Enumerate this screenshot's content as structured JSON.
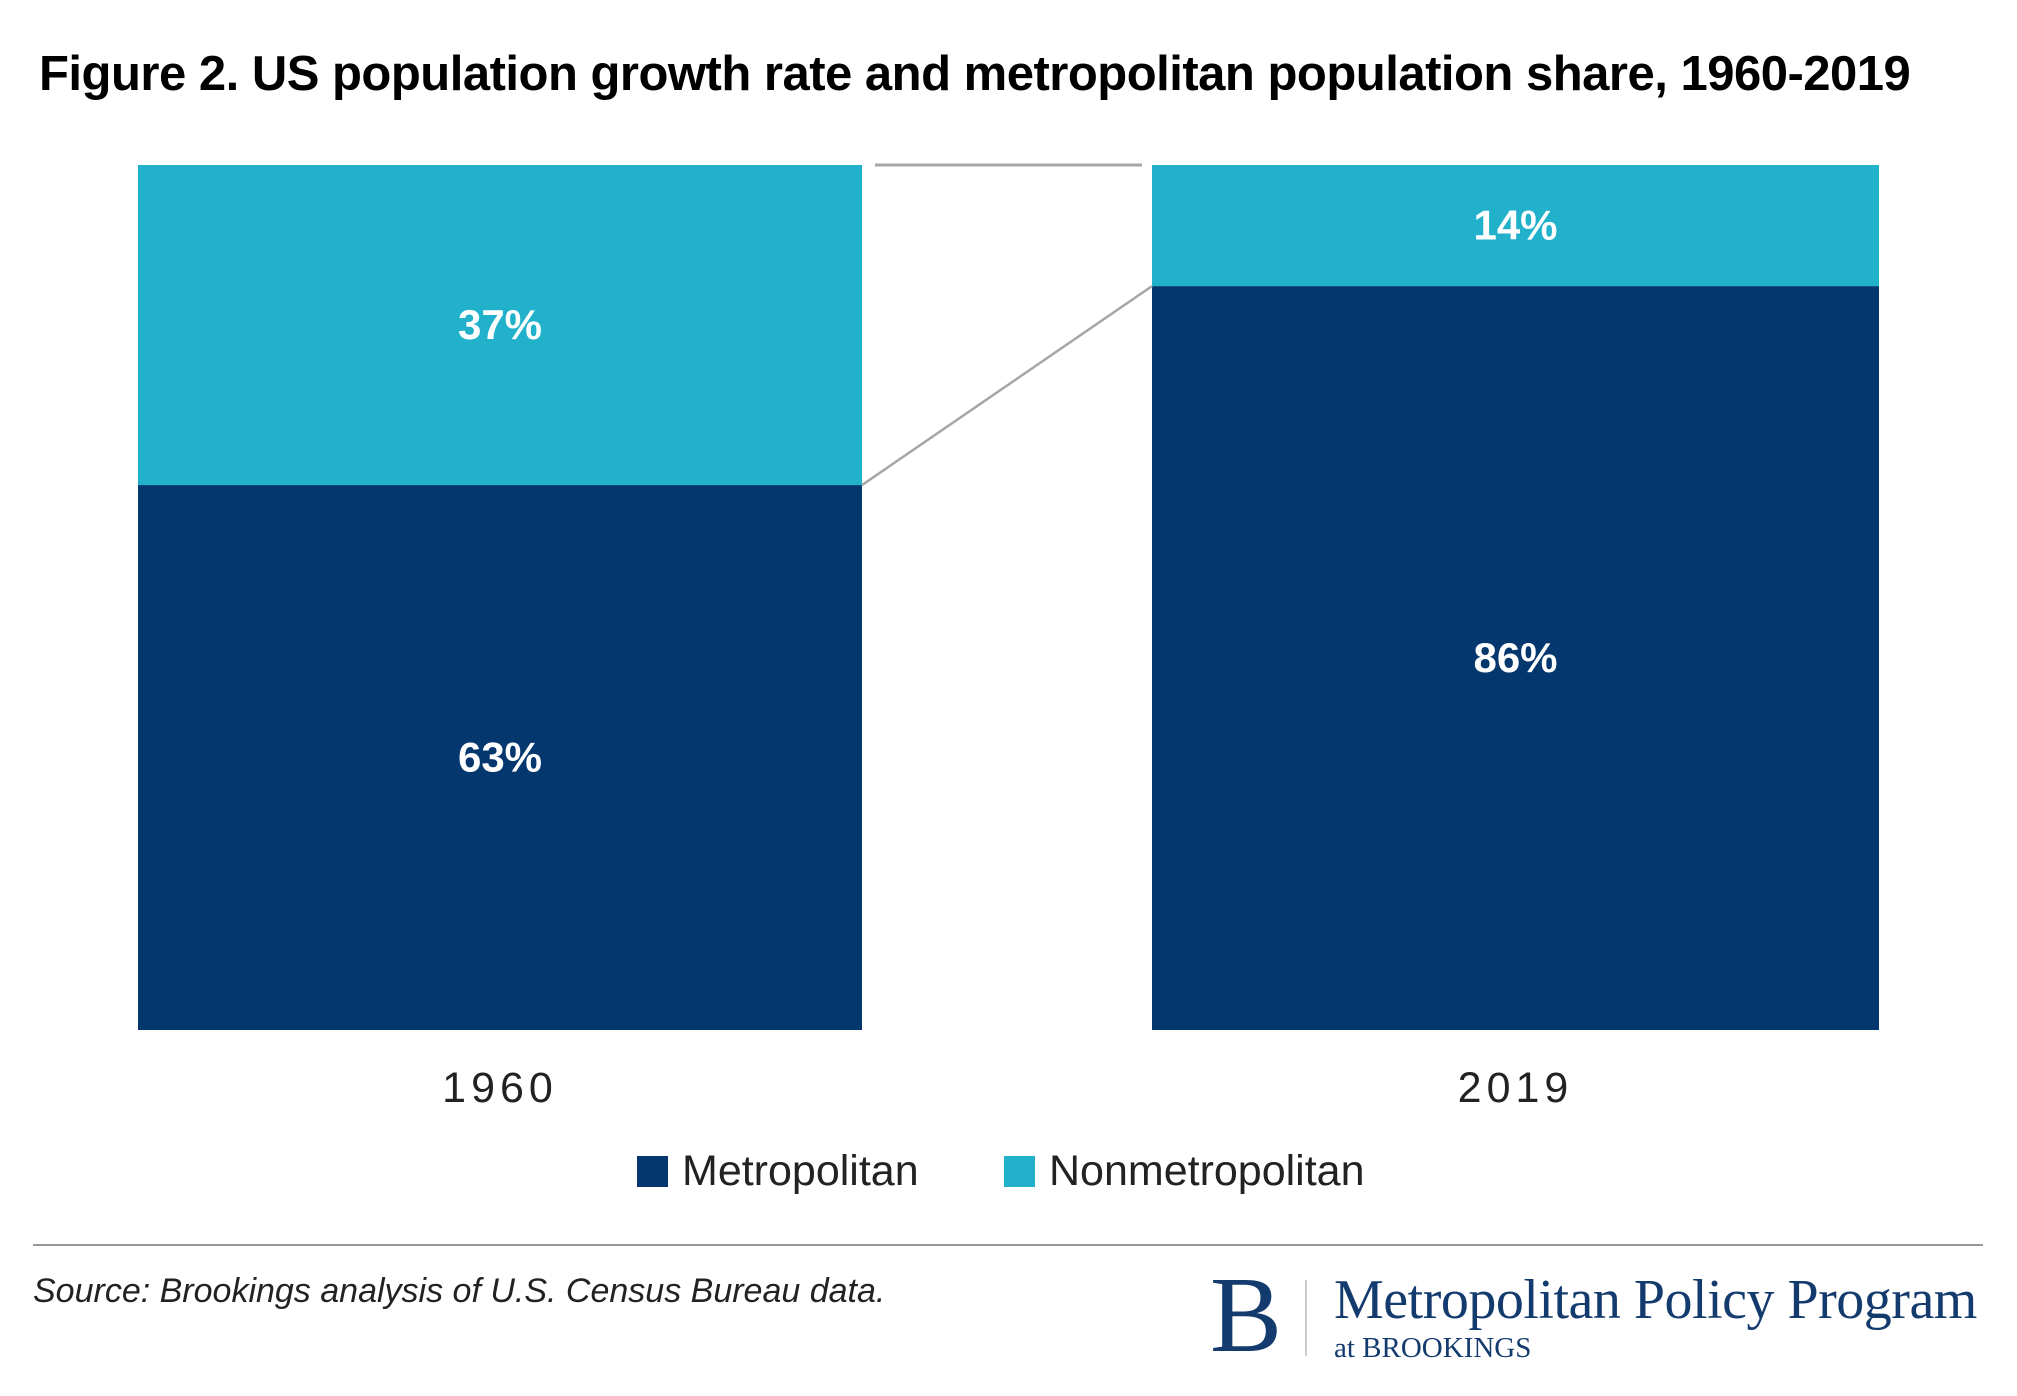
{
  "chart_data": {
    "type": "bar",
    "stacked": true,
    "title": "Figure 2. US population growth rate and metropolitan population share, 1960-2019",
    "categories": [
      "1960",
      "2019"
    ],
    "series": [
      {
        "name": "Metropolitan",
        "values": [
          63,
          86
        ],
        "labels": [
          "63%",
          "86%"
        ],
        "color": "#04376e"
      },
      {
        "name": "Nonmetropolitan",
        "values": [
          37,
          14
        ],
        "labels": [
          "37%",
          "14%"
        ],
        "color": "#21b1cb"
      }
    ],
    "xlabel": "",
    "ylabel": "",
    "ylim": [
      0,
      100
    ],
    "grid": false,
    "legend": "bottom-center",
    "connector_color": "#a6a6a6"
  },
  "footer": {
    "source": "Source: Brookings analysis of U.S. Census Bureau data.",
    "logo_letter": "B",
    "logo_main": "Metropolitan Policy Program",
    "logo_sub": "at BROOKINGS"
  }
}
